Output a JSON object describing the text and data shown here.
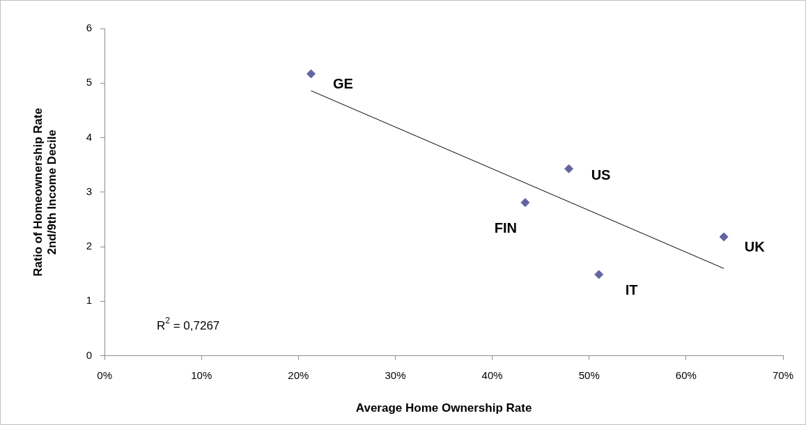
{
  "chart_data": {
    "type": "scatter",
    "xlabel": "Average Home Ownership Rate",
    "ylabel": "Ratio of Homeownership Rate\n2nd/9th Income Decile",
    "xlim": [
      0,
      70
    ],
    "ylim": [
      0,
      6
    ],
    "xticks": [
      {
        "value": 0,
        "label": "0%"
      },
      {
        "value": 10,
        "label": "10%"
      },
      {
        "value": 20,
        "label": "20%"
      },
      {
        "value": 30,
        "label": "30%"
      },
      {
        "value": 40,
        "label": "40%"
      },
      {
        "value": 50,
        "label": "50%"
      },
      {
        "value": 60,
        "label": "60%"
      },
      {
        "value": 70,
        "label": "70%"
      }
    ],
    "yticks": [
      0,
      1,
      2,
      3,
      4,
      5,
      6
    ],
    "grid": false,
    "legend": false,
    "series": [
      {
        "color": "#6464a0",
        "marker": "diamond",
        "x": [
          21.3,
          47.9,
          43.4,
          51.0,
          63.9
        ],
        "values": [
          5.17,
          3.43,
          2.81,
          1.49,
          2.18
        ],
        "value_labels": [
          "GE",
          "US",
          "FIN",
          "IT",
          "UK"
        ]
      },
      {
        "type": "line",
        "color": "#000000",
        "marker": "none",
        "x": [
          21.3,
          63.9
        ],
        "values": [
          4.86,
          1.6
        ]
      }
    ],
    "annotations": [
      "R$^{2}$ = 0,7267"
    ]
  }
}
